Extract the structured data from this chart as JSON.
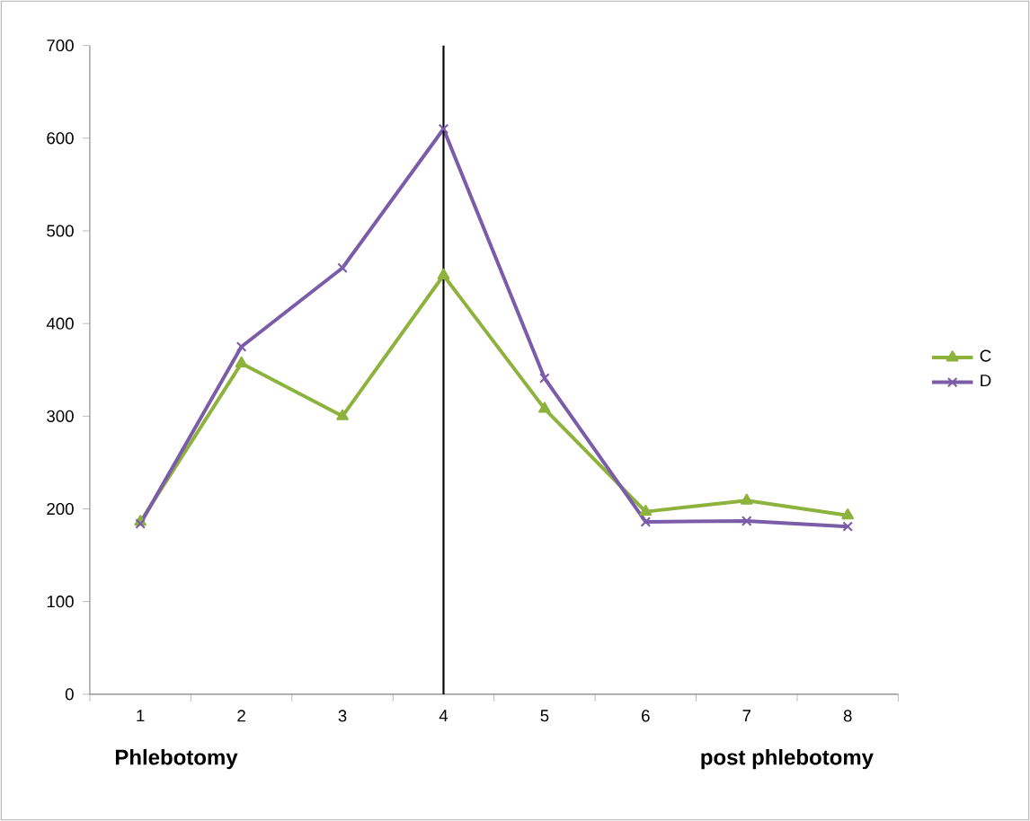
{
  "chart_data": {
    "type": "line",
    "categories": [
      "1",
      "2",
      "3",
      "4",
      "5",
      "6",
      "7",
      "8"
    ],
    "series": [
      {
        "name": "C",
        "color": "#8db33c",
        "marker": "triangle",
        "values": [
          186,
          357,
          300,
          452,
          308,
          197,
          209,
          193
        ]
      },
      {
        "name": "D",
        "color": "#7a5ca8",
        "marker": "cross",
        "values": [
          184,
          375,
          460,
          610,
          341,
          186,
          187,
          181
        ]
      }
    ],
    "ylim": [
      0,
      700
    ],
    "yticks": [
      0,
      100,
      200,
      300,
      400,
      500,
      600,
      700
    ],
    "grid": false,
    "legend": "right",
    "ref_lines": [
      {
        "axis": "x",
        "value": "4",
        "color": "#000000"
      }
    ],
    "annotations": [
      "Phlebotomy",
      "post phlebotomy"
    ]
  }
}
